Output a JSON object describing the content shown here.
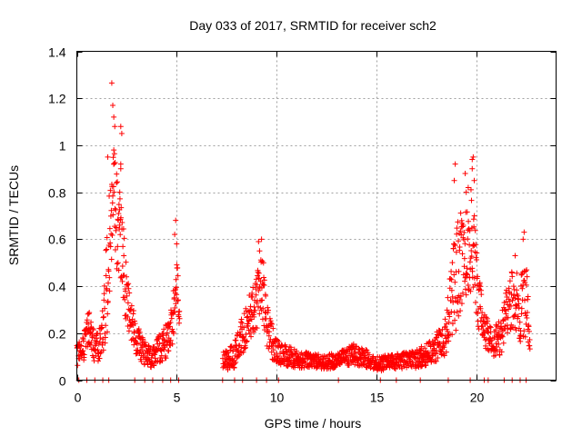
{
  "chart_data": {
    "type": "scatter",
    "title": "Day 033 of 2017, SRMTID for receiver sch2",
    "xlabel": "GPS time / hours",
    "ylabel": "SRMTID / TECUs",
    "xlim": [
      0,
      24
    ],
    "ylim": [
      0,
      1.4
    ],
    "grid": true,
    "marker": "+",
    "series_color": "#ff0000",
    "x_ticks": [
      0,
      5,
      10,
      15,
      20
    ],
    "x_tick_labels": [
      "0",
      "5",
      "10",
      "15",
      "20"
    ],
    "y_ticks": [
      0,
      0.2,
      0.4,
      0.6,
      0.8,
      1.0,
      1.2,
      1.4
    ],
    "y_tick_labels": [
      "0",
      "0.2",
      "0.4",
      "0.6",
      "0.8",
      "1",
      "1.2",
      "1.4"
    ],
    "envelope": {
      "x": [
        0.0,
        0.3,
        0.6,
        0.9,
        1.2,
        1.5,
        1.8,
        2.0,
        2.2,
        2.5,
        2.8,
        3.1,
        3.4,
        3.8,
        4.2,
        4.6,
        4.8,
        5.0,
        5.1,
        7.3,
        7.6,
        8.0,
        8.4,
        8.8,
        9.1,
        9.3,
        9.6,
        10.0,
        11.0,
        12.0,
        13.0,
        13.8,
        14.5,
        15.0,
        16.0,
        17.0,
        17.8,
        18.5,
        18.9,
        19.2,
        19.5,
        19.8,
        20.1,
        20.4,
        20.8,
        21.2,
        21.6,
        21.9,
        22.2,
        22.5,
        22.7
      ],
      "y": [
        0.1,
        0.14,
        0.22,
        0.13,
        0.16,
        0.4,
        0.75,
        0.65,
        0.6,
        0.35,
        0.22,
        0.16,
        0.11,
        0.1,
        0.14,
        0.18,
        0.25,
        0.45,
        0.3,
        0.08,
        0.09,
        0.12,
        0.22,
        0.3,
        0.35,
        0.4,
        0.2,
        0.12,
        0.09,
        0.08,
        0.08,
        0.11,
        0.09,
        0.07,
        0.08,
        0.09,
        0.12,
        0.2,
        0.4,
        0.5,
        0.55,
        0.6,
        0.35,
        0.22,
        0.15,
        0.18,
        0.32,
        0.35,
        0.3,
        0.35,
        0.2
      ],
      "spread": [
        0.08,
        0.1,
        0.12,
        0.09,
        0.12,
        0.35,
        0.45,
        0.35,
        0.3,
        0.2,
        0.14,
        0.1,
        0.08,
        0.07,
        0.1,
        0.12,
        0.15,
        0.25,
        0.15,
        0.06,
        0.07,
        0.1,
        0.14,
        0.16,
        0.2,
        0.22,
        0.14,
        0.08,
        0.06,
        0.05,
        0.05,
        0.07,
        0.06,
        0.05,
        0.05,
        0.06,
        0.08,
        0.14,
        0.35,
        0.35,
        0.3,
        0.35,
        0.2,
        0.12,
        0.1,
        0.12,
        0.2,
        0.2,
        0.22,
        0.25,
        0.12
      ]
    },
    "gaps": [
      [
        5.15,
        7.3
      ]
    ],
    "peaks": [
      {
        "x": 1.75,
        "y": 1.265
      },
      {
        "x": 1.8,
        "y": 1.17
      },
      {
        "x": 1.85,
        "y": 1.12
      },
      {
        "x": 1.9,
        "y": 1.08
      },
      {
        "x": 1.55,
        "y": 0.95
      },
      {
        "x": 1.85,
        "y": 0.98
      },
      {
        "x": 2.2,
        "y": 1.08
      },
      {
        "x": 2.25,
        "y": 1.05
      },
      {
        "x": 2.2,
        "y": 0.92
      },
      {
        "x": 2.2,
        "y": 0.9
      },
      {
        "x": 2.15,
        "y": 0.8
      },
      {
        "x": 4.95,
        "y": 0.68
      },
      {
        "x": 4.9,
        "y": 0.62
      },
      {
        "x": 5.0,
        "y": 0.58
      },
      {
        "x": 9.1,
        "y": 0.59
      },
      {
        "x": 9.25,
        "y": 0.6
      },
      {
        "x": 9.15,
        "y": 0.55
      },
      {
        "x": 18.95,
        "y": 0.92
      },
      {
        "x": 18.9,
        "y": 0.85
      },
      {
        "x": 19.45,
        "y": 0.88
      },
      {
        "x": 19.8,
        "y": 0.94
      },
      {
        "x": 19.85,
        "y": 0.95
      },
      {
        "x": 19.8,
        "y": 0.9
      },
      {
        "x": 19.9,
        "y": 0.85
      },
      {
        "x": 19.6,
        "y": 0.82
      },
      {
        "x": 19.5,
        "y": 0.8
      },
      {
        "x": 22.4,
        "y": 0.63
      },
      {
        "x": 22.35,
        "y": 0.6
      },
      {
        "x": 21.95,
        "y": 0.53
      }
    ],
    "baseline_x": [
      0.1,
      0.5,
      0.9,
      1.3,
      1.6,
      2.9,
      3.4,
      3.8,
      4.3,
      4.7,
      5.1,
      7.3,
      7.9,
      8.3,
      9.0,
      9.5,
      10.1,
      13.1,
      15.2,
      16.0,
      17.2,
      18.6,
      19.7,
      20.4,
      20.6,
      21.4,
      21.8,
      22.2,
      22.5
    ]
  }
}
